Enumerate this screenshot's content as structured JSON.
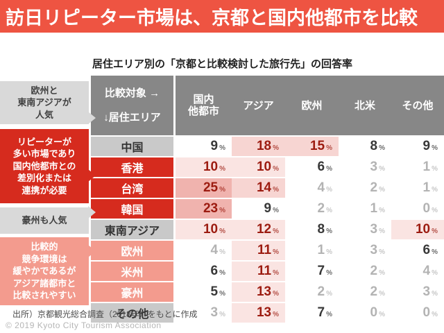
{
  "banner": {
    "title": "訪日リピーター市場は、京都と国内他都市を比較",
    "bg": "#ee5442"
  },
  "subtitle": "居住エリア別の「京都と比較検討した旅行先」の回答率",
  "chart_data": {
    "type": "table",
    "title": "居住エリア別の「京都と比較検討した旅行先」の回答率",
    "unit": "%",
    "corner_top": "比較対象 →",
    "corner_bottom": "↓居住エリア",
    "columns": [
      "国内\n他都市",
      "アジア",
      "欧州",
      "北米",
      "その他"
    ],
    "rows": [
      {
        "label": "中国",
        "style": "gray",
        "values": [
          9,
          18,
          15,
          8,
          9
        ]
      },
      {
        "label": "香港",
        "style": "red",
        "values": [
          10,
          10,
          6,
          3,
          1
        ]
      },
      {
        "label": "台湾",
        "style": "red",
        "values": [
          25,
          14,
          4,
          2,
          1
        ]
      },
      {
        "label": "韓国",
        "style": "red",
        "values": [
          23,
          9,
          2,
          1,
          0
        ]
      },
      {
        "label": "東南アジア",
        "style": "gray",
        "values": [
          10,
          12,
          8,
          3,
          10
        ]
      },
      {
        "label": "欧州",
        "style": "salmon",
        "values": [
          4,
          11,
          1,
          3,
          6
        ]
      },
      {
        "label": "米州",
        "style": "salmon",
        "values": [
          6,
          11,
          7,
          2,
          4
        ]
      },
      {
        "label": "豪州",
        "style": "salmon",
        "values": [
          5,
          13,
          2,
          2,
          3
        ]
      },
      {
        "label": "その他",
        "style": "gray",
        "values": [
          3,
          13,
          7,
          0,
          0
        ]
      }
    ]
  },
  "callouts": [
    {
      "text": "欧州と\n東南アジアが\n人気",
      "style": "gray"
    },
    {
      "text": "リピーターが\n多い市場であり\n国内他都市との\n差別化または\n連携が必要",
      "style": "red"
    },
    {
      "text": "豪州も人気",
      "style": "gray"
    },
    {
      "text": "比較的\n競争環境は\n緩やかであるが\nアジア諸都市と\n比較されやすい",
      "style": "salmon"
    }
  ],
  "footer": {
    "source": "出所）京都観光総合調査（2018年）をもとに作成",
    "copyright": "© 2019 Kyoto City Tourism Association"
  },
  "colors": {
    "banner_red": "#ee5442",
    "strong_red": "#d62b1e",
    "salmon": "#f39b8e",
    "header_gray": "#878787",
    "row_label_gray": "#c9c9c9",
    "callout_gray": "#d9d9d9",
    "hot_text": "#9c1b10",
    "mid_text": "#383838",
    "low_text": "#b3b3b3",
    "heat_rgb": "214,43,30"
  }
}
